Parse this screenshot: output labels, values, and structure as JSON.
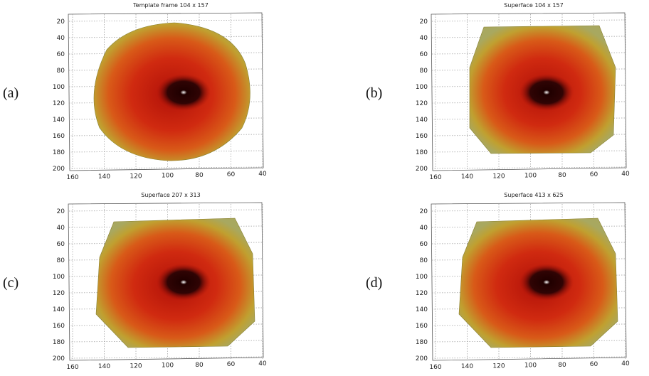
{
  "panels": [
    {
      "label": "(a)",
      "title": "Template frame 104 x 157",
      "yticks": [
        20,
        40,
        60,
        80,
        100,
        120,
        140,
        160,
        180,
        200
      ],
      "xticks": [
        160,
        140,
        120,
        100,
        80,
        60,
        40
      ]
    },
    {
      "label": "(b)",
      "title": "Superface 104 x 157",
      "yticks": [
        20,
        40,
        60,
        80,
        100,
        120,
        140,
        160,
        180,
        200
      ],
      "xticks": [
        160,
        140,
        120,
        100,
        80,
        60,
        40
      ]
    },
    {
      "label": "(c)",
      "title": "Superface 207 x 313",
      "yticks": [
        20,
        40,
        60,
        80,
        100,
        120,
        140,
        160,
        180,
        200
      ],
      "xticks": [
        160,
        140,
        120,
        100,
        80,
        60,
        40
      ]
    },
    {
      "label": "(d)",
      "title": "Superface 413 x 625",
      "yticks": [
        20,
        40,
        60,
        80,
        100,
        120,
        140,
        160,
        180,
        200
      ],
      "xticks": [
        160,
        140,
        120,
        100,
        80,
        60,
        40
      ]
    }
  ]
}
